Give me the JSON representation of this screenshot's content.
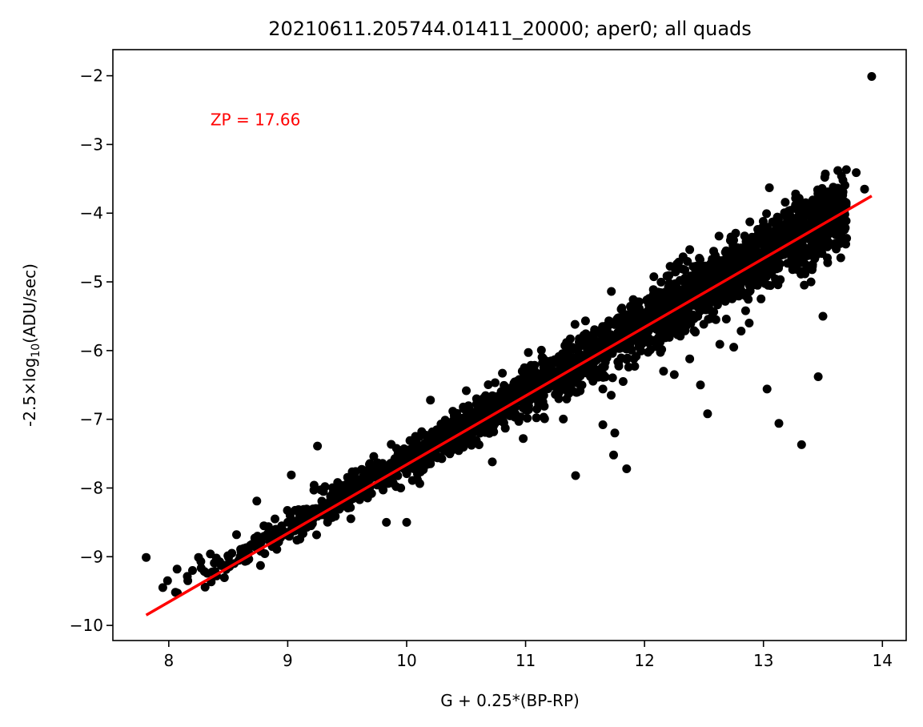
{
  "chart_data": {
    "type": "scatter",
    "title": "20210611.205744.01411_20000; aper0; all quads",
    "xlabel": "G + 0.25*(BP-RP)",
    "ylabel_prefix": "-2.5×log",
    "ylabel_sub": "10",
    "ylabel_suffix": "(ADU/sec)",
    "xlim": [
      7.53,
      14.2
    ],
    "ylim": [
      -10.22,
      -1.62
    ],
    "xticks": [
      8,
      9,
      10,
      11,
      12,
      13,
      14
    ],
    "yticks": [
      -10,
      -9,
      -8,
      -7,
      -6,
      -5,
      -4,
      -3,
      -2
    ],
    "xtick_labels": [
      "8",
      "9",
      "10",
      "11",
      "12",
      "13",
      "14"
    ],
    "ytick_labels": [
      "−10",
      "−9",
      "−8",
      "−7",
      "−6",
      "−5",
      "−4",
      "−3",
      "−2"
    ],
    "point_color": "#000000",
    "fit_color": "#ff0000",
    "fit_line": {
      "x": [
        7.81,
        13.91
      ],
      "y": [
        -9.85,
        -3.75
      ]
    },
    "annotation": {
      "text": "ZP = 17.66",
      "x": 8.35,
      "y": -2.72,
      "color": "#ff0000"
    },
    "trend": {
      "slope": 1.0,
      "intercept": -17.66,
      "x_range": [
        7.95,
        13.7
      ],
      "scatter_sd": 0.12
    },
    "points": [
      [
        7.81,
        -9.01
      ],
      [
        7.95,
        -9.45
      ],
      [
        7.99,
        -9.35
      ],
      [
        8.07,
        -9.18
      ],
      [
        8.16,
        -9.35
      ],
      [
        8.2,
        -9.2
      ],
      [
        8.25,
        -9.01
      ],
      [
        8.27,
        -9.07
      ],
      [
        8.35,
        -8.96
      ],
      [
        8.4,
        -9.02
      ],
      [
        8.53,
        -8.95
      ],
      [
        8.55,
        -9.1
      ],
      [
        8.57,
        -8.68
      ],
      [
        8.63,
        -8.88
      ],
      [
        8.7,
        -8.82
      ],
      [
        8.74,
        -8.19
      ],
      [
        8.78,
        -8.73
      ],
      [
        8.8,
        -8.55
      ],
      [
        8.85,
        -8.68
      ],
      [
        8.9,
        -8.6
      ],
      [
        8.95,
        -8.55
      ],
      [
        9.02,
        -8.4
      ],
      [
        9.03,
        -7.81
      ],
      [
        9.05,
        -8.48
      ],
      [
        9.1,
        -8.33
      ],
      [
        9.15,
        -8.4
      ],
      [
        9.22,
        -8.03
      ],
      [
        9.25,
        -7.39
      ],
      [
        9.3,
        -8.05
      ],
      [
        9.36,
        -8.12
      ],
      [
        9.42,
        -7.92
      ],
      [
        9.48,
        -8.0
      ],
      [
        9.58,
        -7.88
      ],
      [
        9.65,
        -7.75
      ],
      [
        9.7,
        -7.78
      ],
      [
        9.78,
        -7.68
      ],
      [
        9.83,
        -8.5
      ],
      [
        9.9,
        -7.58
      ],
      [
        9.95,
        -8.0
      ],
      [
        10.0,
        -8.5
      ],
      [
        10.0,
        -7.55
      ],
      [
        10.08,
        -7.38
      ],
      [
        10.15,
        -7.45
      ],
      [
        10.2,
        -6.72
      ],
      [
        10.28,
        -7.35
      ],
      [
        10.36,
        -7.18
      ],
      [
        10.45,
        -7.12
      ],
      [
        10.55,
        -6.98
      ],
      [
        10.62,
        -6.92
      ],
      [
        10.72,
        -7.62
      ],
      [
        10.8,
        -6.72
      ],
      [
        10.88,
        -6.65
      ],
      [
        10.98,
        -7.28
      ],
      [
        10.99,
        -6.25
      ],
      [
        11.05,
        -6.48
      ],
      [
        11.15,
        -6.32
      ],
      [
        11.22,
        -6.38
      ],
      [
        11.3,
        -6.15
      ],
      [
        11.35,
        -5.95
      ],
      [
        11.42,
        -7.82
      ],
      [
        11.5,
        -6.1
      ],
      [
        11.6,
        -6.0
      ],
      [
        11.65,
        -7.08
      ],
      [
        11.72,
        -6.65
      ],
      [
        11.75,
        -7.2
      ],
      [
        11.74,
        -7.52
      ],
      [
        11.82,
        -6.45
      ],
      [
        11.85,
        -7.72
      ],
      [
        11.95,
        -5.45
      ],
      [
        11.98,
        -5.9
      ],
      [
        12.15,
        -5.62
      ],
      [
        12.16,
        -6.3
      ],
      [
        12.25,
        -6.35
      ],
      [
        12.3,
        -5.55
      ],
      [
        12.38,
        -6.12
      ],
      [
        12.42,
        -5.25
      ],
      [
        12.47,
        -6.5
      ],
      [
        12.53,
        -6.92
      ],
      [
        12.6,
        -5.55
      ],
      [
        12.75,
        -5.95
      ],
      [
        12.85,
        -5.42
      ],
      [
        12.88,
        -5.6
      ],
      [
        13.03,
        -6.56
      ],
      [
        13.05,
        -3.63
      ],
      [
        13.13,
        -7.06
      ],
      [
        13.23,
        -4.74
      ],
      [
        13.28,
        -3.92
      ],
      [
        13.32,
        -7.37
      ],
      [
        13.32,
        -4.85
      ],
      [
        13.4,
        -5.0
      ],
      [
        13.46,
        -6.38
      ],
      [
        13.5,
        -5.5
      ],
      [
        13.52,
        -3.43
      ],
      [
        13.58,
        -3.9
      ],
      [
        13.65,
        -4.65
      ],
      [
        13.78,
        -3.41
      ],
      [
        13.85,
        -3.65
      ],
      [
        13.91,
        -2.01
      ],
      [
        13.12,
        -4.6
      ],
      [
        12.95,
        -5.05
      ]
    ]
  }
}
